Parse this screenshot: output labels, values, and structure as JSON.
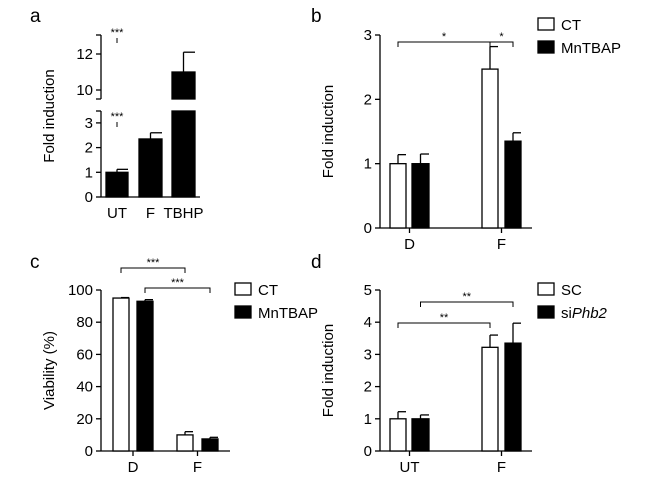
{
  "chart_data": [
    {
      "panel": "a",
      "type": "bar",
      "ylabel": "Fold induction",
      "categories": [
        "UT",
        "F",
        "TBHP"
      ],
      "series": [
        {
          "name": "",
          "values": [
            1.0,
            2.35,
            11.0
          ],
          "errors": [
            0.12,
            0.25,
            1.1
          ],
          "fill": "#000000"
        }
      ],
      "ylim_lower": [
        0,
        3.5
      ],
      "ylim_upper": [
        9.5,
        13
      ],
      "yticks_lower": [
        "0",
        "1",
        "2",
        "3"
      ],
      "yticks_upper": [
        "10",
        "12"
      ],
      "annotations": [
        {
          "from": [
            0,
            0
          ],
          "to": [
            0,
            2
          ],
          "label": "***"
        },
        {
          "from": [
            0,
            0
          ],
          "to": [
            0,
            1
          ],
          "label": "***"
        }
      ]
    },
    {
      "panel": "b",
      "type": "bar",
      "ylabel": "Fold induction",
      "categories": [
        "D",
        "F"
      ],
      "series": [
        {
          "name": "CT",
          "values": [
            1.0,
            2.47
          ],
          "errors": [
            0.14,
            0.35
          ],
          "fill": "#ffffff"
        },
        {
          "name": "MnTBAP",
          "values": [
            1.0,
            1.35
          ],
          "errors": [
            0.15,
            0.13
          ],
          "fill": "#000000"
        }
      ],
      "ylim": [
        0,
        3
      ],
      "yticks": [
        "0",
        "1",
        "2",
        "3"
      ],
      "legend": "top-right",
      "annotations": [
        {
          "from": [
            0,
            0
          ],
          "to": [
            1,
            0
          ],
          "label": "*"
        },
        {
          "from": [
            1,
            0
          ],
          "to": [
            1,
            1
          ],
          "label": "*"
        }
      ]
    },
    {
      "panel": "c",
      "type": "bar",
      "ylabel": "Viability (%)",
      "categories": [
        "D",
        "F"
      ],
      "series": [
        {
          "name": "CT",
          "values": [
            95,
            10
          ],
          "errors": [
            0.3,
            2
          ],
          "fill": "#ffffff"
        },
        {
          "name": "MnTBAP",
          "values": [
            93,
            7.5
          ],
          "errors": [
            1,
            1
          ],
          "fill": "#000000"
        }
      ],
      "ylim": [
        0,
        100
      ],
      "yticks": [
        "0",
        "20",
        "40",
        "60",
        "80",
        "100"
      ],
      "legend": "top-right",
      "annotations": [
        {
          "from": [
            0,
            0
          ],
          "to": [
            1,
            0
          ],
          "label": "***"
        },
        {
          "from": [
            0,
            1
          ],
          "to": [
            1,
            1
          ],
          "label": "***"
        }
      ]
    },
    {
      "panel": "d",
      "type": "bar",
      "ylabel": "Fold induction",
      "categories": [
        "UT",
        "F"
      ],
      "series": [
        {
          "name": "SC",
          "values": [
            1.0,
            3.22
          ],
          "errors": [
            0.22,
            0.38
          ],
          "fill": "#ffffff"
        },
        {
          "name": "si",
          "name_italic": "Phb2",
          "values": [
            1.0,
            3.35
          ],
          "errors": [
            0.12,
            0.62
          ],
          "fill": "#000000"
        }
      ],
      "ylim": [
        0,
        5
      ],
      "yticks": [
        "0",
        "1",
        "2",
        "3",
        "4",
        "5"
      ],
      "legend": "top-right",
      "annotations": [
        {
          "from": [
            0,
            0
          ],
          "to": [
            1,
            0
          ],
          "label": "**"
        },
        {
          "from": [
            0,
            1
          ],
          "to": [
            1,
            1
          ],
          "label": "**"
        }
      ]
    }
  ]
}
